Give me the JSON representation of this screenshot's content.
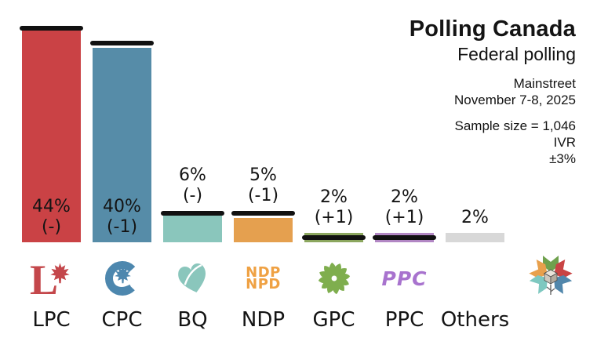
{
  "header": {
    "title": "Polling Canada",
    "subtitle": "Federal polling",
    "pollster": "Mainstreet",
    "dates": "November 7-8, 2025",
    "sample_size": "Sample size = 1,046",
    "method": "IVR",
    "margin_of_error": "±3%"
  },
  "chart_data": {
    "type": "bar",
    "orientation": "vertical",
    "title": "Polling Canada — Federal polling",
    "categories": [
      "LPC",
      "CPC",
      "BQ",
      "NDP",
      "GPC",
      "PPC",
      "Others"
    ],
    "values": [
      44,
      40,
      6,
      5,
      2,
      2,
      2
    ],
    "value_labels": [
      "44%",
      "40%",
      "6%",
      "5%",
      "2%",
      "2%",
      "2%"
    ],
    "change_labels": [
      "(-)",
      "(-1)",
      "(-)",
      "(-1)",
      "(+1)",
      "(+1)",
      ""
    ],
    "previous_values": [
      44,
      41,
      6,
      6,
      1,
      1,
      null
    ],
    "bar_colors": [
      "#CA4245",
      "#568CA8",
      "#8AC6BC",
      "#E5A04F",
      "#8CA75F",
      "#B287C4",
      "#D8D8D8"
    ],
    "previous_marker_color": "#111111",
    "ylim": [
      0,
      46
    ],
    "grid": false,
    "legend": false,
    "xlabel": "",
    "ylabel": ""
  },
  "parties": [
    {
      "label": "LPC",
      "logo": "lpc-liberal-logo",
      "logo_color": "#C4474B"
    },
    {
      "label": "CPC",
      "logo": "cpc-conservative-logo",
      "logo_color": "#4D87AE"
    },
    {
      "label": "BQ",
      "logo": "bq-bloc-quebecois-logo",
      "logo_color": "#8AC6BC"
    },
    {
      "label": "NDP",
      "logo": "ndp-logo",
      "logo_color": "#EFA143",
      "logo_lines": [
        "NDP",
        "NPD"
      ]
    },
    {
      "label": "GPC",
      "logo": "gpc-green-party-logo",
      "logo_color": "#7FAE4E"
    },
    {
      "label": "PPC",
      "logo": "ppc-logo",
      "logo_color": "#A873CE",
      "logo_text": "PPC"
    },
    {
      "label": "Others",
      "logo": null
    }
  ],
  "brand": {
    "logo": "polling-canada-logo",
    "colors": {
      "orange": "#E8A04C",
      "green": "#6FA14D",
      "red": "#C94444",
      "teal": "#7EC8C0",
      "blue": "#5187AC",
      "cube_top": "#E9E3DB",
      "cube_left": "#CFC8BE",
      "cube_right": "#B3AB9F"
    }
  }
}
